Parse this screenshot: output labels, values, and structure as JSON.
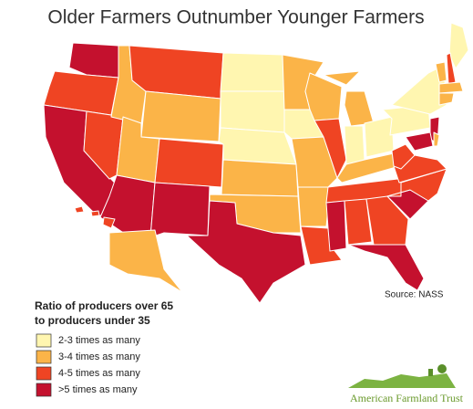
{
  "title": "Older Farmers Outnumber Younger Farmers",
  "source": "Source: NASS",
  "legend": {
    "heading": [
      "Ratio of producers over 65",
      "to producers under 35"
    ],
    "items": [
      {
        "label": "2-3 times as many",
        "color": "#fff6b0"
      },
      {
        "label": "3-4 times as many",
        "color": "#fbb448"
      },
      {
        "label": "4-5 times as many",
        "color": "#ef4423"
      },
      {
        "label": ">5 times as many",
        "color": "#c4112e"
      }
    ]
  },
  "footer": "American Farmland Trust",
  "map": {
    "regions": [
      3,
      2,
      3,
      2,
      1,
      2,
      1,
      1,
      3,
      2,
      3,
      0,
      0,
      0,
      1,
      1,
      3,
      1,
      0,
      1,
      1,
      2,
      1,
      2,
      1,
      1,
      0,
      0,
      1,
      2,
      3,
      2,
      2,
      3,
      3,
      2,
      2,
      2,
      0,
      0,
      3,
      3,
      1,
      0,
      2,
      1,
      1,
      1,
      2,
      2,
      2,
      1
    ]
  }
}
